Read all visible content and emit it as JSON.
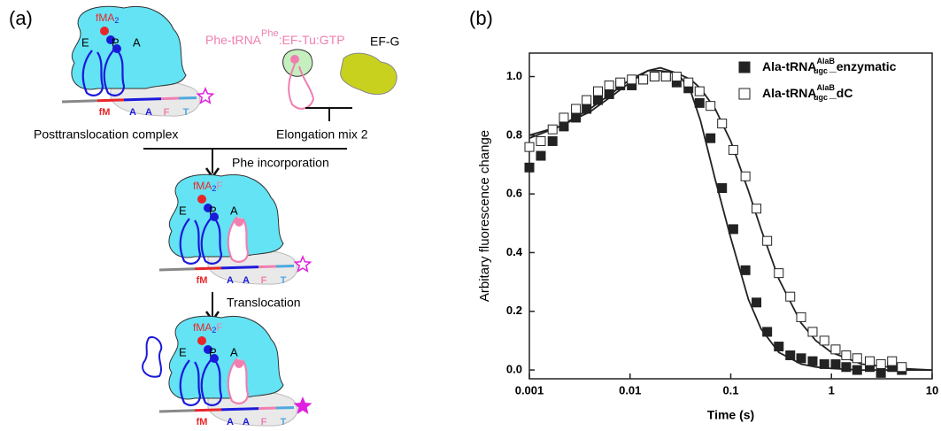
{
  "panels": [
    "(a)",
    "(b)"
  ],
  "diagram": {
    "complexes": [
      {
        "label_main": "fMA",
        "label_sub": "2",
        "label_extra": "",
        "sites": [
          "E",
          "P",
          "A"
        ],
        "codons": [
          "fM",
          "A",
          "A",
          "F",
          "T"
        ]
      },
      {
        "label_main": "fMA",
        "label_sub": "2",
        "label_extra": "F",
        "sites": [
          "E",
          "P",
          "A"
        ],
        "codons": [
          "fM",
          "A",
          "A",
          "F",
          "T"
        ]
      },
      {
        "label_main": "fMA",
        "label_sub": "2",
        "label_extra": "F",
        "sites": [
          "E",
          "P",
          "A"
        ],
        "codons": [
          "fM",
          "A",
          "A",
          "F",
          "T"
        ]
      }
    ],
    "ternary_main": "Phe-tRNA",
    "ternary_sup": "Phe",
    "ternary_rest": ":EF-Tu:GTP",
    "efg": "EF-G",
    "post_label": "Posttranslocation complex",
    "mix_label": "Elongation mix 2",
    "step1": "Phe incorporation",
    "step2": "Translocation"
  },
  "chart_data": {
    "type": "scatter",
    "xlabel": "Time (s)",
    "ylabel": "Arbitary fluorescence change",
    "log_x": true,
    "xlim": [
      0.001,
      10
    ],
    "xticks": [
      0.001,
      0.01,
      0.1,
      1,
      10
    ],
    "ylim": [
      -0.03,
      1.08
    ],
    "yticks": [
      {
        "value": 0,
        "label": "0.0"
      },
      0.2,
      0.4,
      0.6,
      0.8,
      {
        "value": 1,
        "label": "1.0"
      }
    ],
    "legend": "upper right",
    "series": [
      {
        "name": "Ala-tRNA",
        "name_sup": "AlaB",
        "name_sub": "ugc",
        "name_suffix": "_enzymatic",
        "color": "#222222",
        "filled": true,
        "x": [
          0.001,
          0.0013,
          0.0017,
          0.0022,
          0.0029,
          0.0037,
          0.0048,
          0.0062,
          0.008,
          0.0104,
          0.0135,
          0.0175,
          0.0227,
          0.029,
          0.038,
          0.049,
          0.063,
          0.082,
          0.106,
          0.14,
          0.18,
          0.23,
          0.3,
          0.39,
          0.5,
          0.65,
          0.85,
          1.1,
          1.4,
          1.8,
          2.4,
          3.1,
          4.0,
          5.0
        ],
        "values": [
          0.69,
          0.73,
          0.78,
          0.83,
          0.86,
          0.89,
          0.92,
          0.94,
          0.97,
          0.97,
          0.99,
          1.0,
          1.0,
          0.98,
          0.96,
          0.91,
          0.79,
          0.62,
          0.48,
          0.34,
          0.23,
          0.13,
          0.08,
          0.05,
          0.04,
          0.03,
          0.02,
          0.02,
          0.01,
          0.0,
          0.01,
          -0.01,
          0.01,
          0.0
        ]
      },
      {
        "name": "Ala-tRNA",
        "name_sup": "AlaB",
        "name_sub": "ugc",
        "name_suffix": "_dC",
        "color": "#222222",
        "filled": false,
        "x": [
          0.001,
          0.0013,
          0.0017,
          0.0022,
          0.0029,
          0.0037,
          0.0048,
          0.0062,
          0.008,
          0.0104,
          0.0135,
          0.0175,
          0.0227,
          0.029,
          0.038,
          0.049,
          0.063,
          0.082,
          0.106,
          0.14,
          0.18,
          0.23,
          0.3,
          0.39,
          0.5,
          0.65,
          0.85,
          1.1,
          1.4,
          1.8,
          2.4,
          3.1,
          4.0,
          5.0
        ],
        "values": [
          0.76,
          0.78,
          0.82,
          0.86,
          0.89,
          0.92,
          0.95,
          0.97,
          0.98,
          0.99,
          0.99,
          1.0,
          1.0,
          1.0,
          0.98,
          0.95,
          0.9,
          0.84,
          0.75,
          0.66,
          0.55,
          0.44,
          0.33,
          0.25,
          0.18,
          0.13,
          0.1,
          0.07,
          0.05,
          0.04,
          0.03,
          0.02,
          0.03,
          0.01
        ]
      }
    ],
    "fits": [
      {
        "color": "#222222",
        "x": [
          0.001,
          0.002,
          0.004,
          0.007,
          0.01,
          0.015,
          0.02,
          0.03,
          0.04,
          0.05,
          0.07,
          0.1,
          0.15,
          0.2,
          0.3,
          0.5,
          0.7,
          1,
          2,
          5,
          10
        ],
        "values": [
          0.8,
          0.83,
          0.88,
          0.94,
          0.98,
          1.02,
          1.03,
          1.01,
          0.95,
          0.85,
          0.65,
          0.45,
          0.24,
          0.14,
          0.06,
          0.02,
          0.01,
          0.005,
          0.0,
          0.0,
          0.0
        ]
      },
      {
        "color": "#222222",
        "x": [
          0.001,
          0.002,
          0.004,
          0.007,
          0.01,
          0.015,
          0.02,
          0.03,
          0.04,
          0.05,
          0.07,
          0.1,
          0.15,
          0.2,
          0.3,
          0.5,
          0.7,
          1,
          2,
          5,
          10
        ],
        "values": [
          0.79,
          0.83,
          0.89,
          0.95,
          0.99,
          1.02,
          1.02,
          1.01,
          0.99,
          0.96,
          0.89,
          0.78,
          0.61,
          0.48,
          0.31,
          0.16,
          0.1,
          0.06,
          0.02,
          0.005,
          0.0
        ]
      }
    ]
  }
}
